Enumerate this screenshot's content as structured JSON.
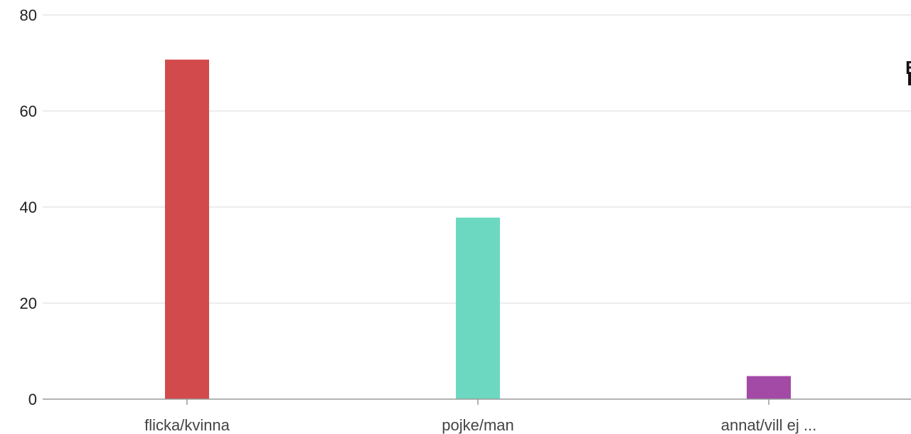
{
  "chart_data": {
    "type": "bar",
    "categories": [
      "flicka/kvinna",
      "pojke/man",
      "annat/vill ej ..."
    ],
    "values": [
      70.7,
      37.8,
      4.8
    ],
    "colors": [
      "#d24a4b",
      "#6dd8c1",
      "#a34aa6"
    ],
    "ylim": [
      0,
      80
    ],
    "yticks": [
      0,
      20,
      40,
      60,
      80
    ],
    "grid": true,
    "legend": "right, clipped",
    "legend_visible_text": "E"
  }
}
